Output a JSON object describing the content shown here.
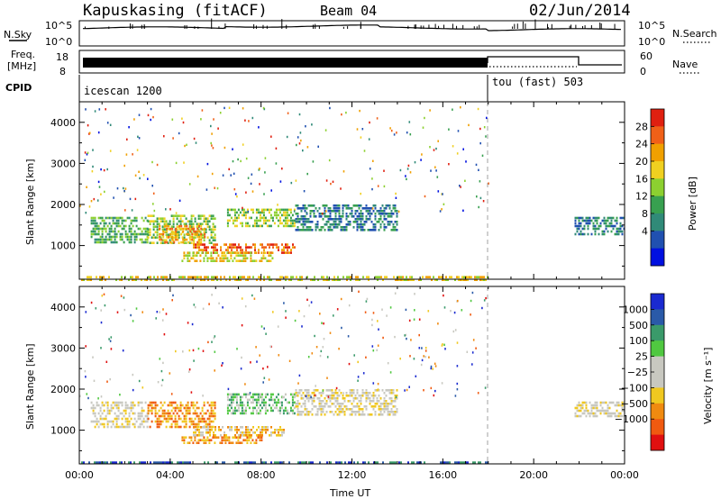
{
  "header": {
    "station": "Kapuskasing (fitACF)",
    "beam": "Beam 04",
    "date": "02/Jun/2014"
  },
  "noise_panel": {
    "left_label": "N.Sky",
    "right_label": "N.Search",
    "left_ticks": [
      "10^5",
      "10^0"
    ],
    "right_ticks": [
      "10^5",
      "10^0"
    ]
  },
  "freq_panel": {
    "left_label_line1": "Freq.",
    "left_label_line2": "[MHz]",
    "right_label": "Nave",
    "left_ticks": [
      "18",
      "8"
    ],
    "right_ticks": [
      "60",
      "0"
    ]
  },
  "cpid_panel": {
    "label": "CPID",
    "modes": [
      "icescan 1200",
      "tou (fast) 503"
    ],
    "mode_change_hours": [
      18.0
    ]
  },
  "colors": {
    "power": [
      "#0010e0",
      "#2050b0",
      "#308a78",
      "#38a050",
      "#8cd030",
      "#f0d020",
      "#f0a000",
      "#f06018",
      "#e02010"
    ],
    "velocity": [
      "#e01010",
      "#f05a10",
      "#f08a10",
      "#f0c820",
      "#c8c8c0",
      "#c8c8c0",
      "#50c840",
      "#3a9a6a",
      "#2a5aa8",
      "#1a2ad0"
    ],
    "noise": "#000000",
    "dashed_marker": "#a0a0a0"
  },
  "chart_data": [
    {
      "type": "heatmap",
      "name": "power",
      "ylabel": "Slant Range [km]",
      "xlim": [
        0,
        24
      ],
      "ylim": [
        180,
        4500
      ],
      "y_ticks": [
        1000,
        2000,
        3000,
        4000
      ],
      "colorbar_label": "Power [dB]",
      "colorbar_ticks": [
        "28",
        "24",
        "20",
        "16",
        "12",
        "8",
        "4"
      ],
      "echo_regions": [
        {
          "t0": 0.5,
          "t1": 3.0,
          "r0": 1100,
          "r1": 1700,
          "level": 3
        },
        {
          "t0": 3.0,
          "t1": 6.0,
          "r0": 1050,
          "r1": 1750,
          "level": 4
        },
        {
          "t0": 3.5,
          "t1": 5.5,
          "r0": 1100,
          "r1": 1500,
          "level": 6
        },
        {
          "t0": 6.5,
          "t1": 9.5,
          "r0": 1450,
          "r1": 1900,
          "level": 4
        },
        {
          "t0": 5.0,
          "t1": 9.5,
          "r0": 850,
          "r1": 1050,
          "level": 7
        },
        {
          "t0": 4.5,
          "t1": 8.5,
          "r0": 650,
          "r1": 850,
          "level": 5
        },
        {
          "t0": 9.5,
          "t1": 14.0,
          "r0": 1400,
          "r1": 2000,
          "level": 2
        },
        {
          "t0": 21.8,
          "t1": 24.0,
          "r0": 1300,
          "r1": 1700,
          "level": 2
        },
        {
          "t0": 0.0,
          "t1": 18.0,
          "r0": 190,
          "r1": 260,
          "level": 5
        }
      ]
    },
    {
      "type": "heatmap",
      "name": "velocity",
      "ylabel": "Slant Range [km]",
      "xlabel": "Time UT",
      "xlim": [
        0,
        24
      ],
      "x_ticks": [
        "00:00",
        "04:00",
        "08:00",
        "12:00",
        "16:00",
        "20:00",
        "00:00"
      ],
      "ylim": [
        180,
        4500
      ],
      "y_ticks": [
        1000,
        2000,
        3000,
        4000
      ],
      "colorbar_label": "Velocity [m s⁻¹]",
      "colorbar_ticks": [
        "1000",
        "500",
        "100",
        "25",
        "−25",
        "−100",
        "−500",
        "−1000"
      ],
      "echo_regions": [
        {
          "t0": 0.5,
          "t1": 3.0,
          "r0": 1100,
          "r1": 1700,
          "level": 4
        },
        {
          "t0": 3.0,
          "t1": 6.0,
          "r0": 1100,
          "r1": 1700,
          "level": 2
        },
        {
          "t0": 6.5,
          "t1": 9.5,
          "r0": 1400,
          "r1": 1900,
          "level": 6
        },
        {
          "t0": 5.0,
          "t1": 9.0,
          "r0": 850,
          "r1": 1100,
          "level": 3
        },
        {
          "t0": 4.5,
          "t1": 8.0,
          "r0": 700,
          "r1": 850,
          "level": 2
        },
        {
          "t0": 9.5,
          "t1": 14.0,
          "r0": 1400,
          "r1": 2000,
          "level": 4
        },
        {
          "t0": 21.8,
          "t1": 24.0,
          "r0": 1350,
          "r1": 1700,
          "level": 4
        },
        {
          "t0": 0.0,
          "t1": 18.0,
          "r0": 190,
          "r1": 240,
          "level": 8
        }
      ]
    }
  ]
}
